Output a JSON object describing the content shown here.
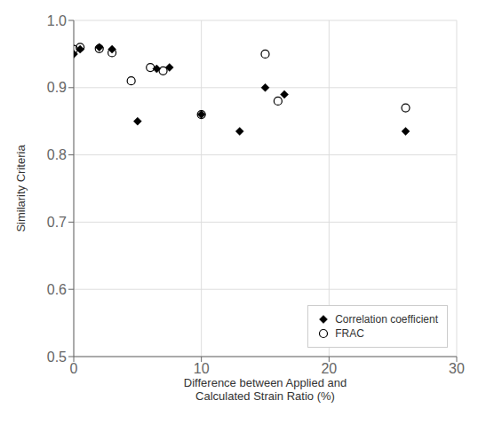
{
  "chart_data": {
    "type": "scatter",
    "xlabel": "Difference between Applied and\nCalculated Strain Ratio (%)",
    "ylabel": "Similarity Criteria",
    "xlim": [
      0,
      30
    ],
    "ylim": [
      0.5,
      1.0
    ],
    "xticks": [
      0,
      10,
      20,
      30
    ],
    "yticks": [
      0.5,
      0.6,
      0.7,
      0.8,
      0.9,
      {
        "value": 1.0,
        "label": "1.0"
      }
    ],
    "grid": true,
    "legend": "lower right",
    "series": [
      {
        "name": "Correlation coefficient",
        "color": "#000000",
        "marker": "diamond",
        "x": [
          0,
          0.5,
          2,
          3,
          5,
          6.5,
          7.5,
          10,
          13,
          15,
          16.5,
          26
        ],
        "values": [
          0.95,
          0.957,
          0.96,
          0.957,
          0.85,
          0.928,
          0.93,
          0.86,
          0.835,
          0.9,
          0.89,
          0.835
        ]
      },
      {
        "name": "FRAC",
        "color": "#000000",
        "marker": "open_circle",
        "x": [
          0,
          0.5,
          2,
          3,
          4.5,
          6,
          7,
          10,
          15,
          16,
          26
        ],
        "values": [
          0.957,
          0.96,
          0.958,
          0.952,
          0.91,
          0.93,
          0.925,
          0.86,
          0.95,
          0.88,
          0.87
        ]
      }
    ]
  }
}
